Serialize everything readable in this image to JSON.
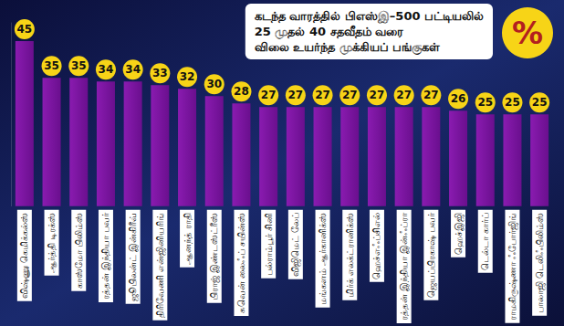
{
  "chart_data": {
    "type": "bar",
    "title": "கடந்த வாரத்தில் பிஎஸ்இ–500 பட்டியலில்\n25 முதல் 40 சதவீதம் வரை\nவிலை உயர்ந்த முக்கியப் பங்குகள்",
    "annotations": [
      {
        "text": "%"
      }
    ],
    "categories": [
      "விஷ்ணு கெமிக்கல்ஸ்",
      "ஆர்த்தி டிரக்ஸ்",
      "காஸ்மோ பிலிம்ஸ்",
      "ரத்தன் இந்தியா பவர்",
      "ஜூபிலன்ட் இன்கிரீவ்",
      "திரிவேணி என்ஜினியரிங்",
      "ஆனந்த் ராதி",
      "பிராஜ் இண்டஸ்ட்ரீஸ்",
      "சுவென் லைஃப் சயின்ஸ்",
      "பல்ராம்பூர் சினி",
      "விஜிமெட் லேப்",
      "மங்களம் ஆர்கானிக்ஸ்",
      "மிர்க் எலக்ட்ரானிக்ஸ்",
      "ஹெச்எஃப்சிஎல்",
      "ரத்தன் இந்தியா இன்ஃப்ரா",
      "ஜெயப்பிரகாஷ் பவர்",
      "ஹெச்இஜி",
      "டெல்டா கார்ப்",
      "ராமகிருஷ்ணா ஃபோர்ஜிங்",
      "பாலாஜி டெலிஃபிலிம்ஸ்"
    ],
    "values": [
      45,
      35,
      35,
      34,
      34,
      33,
      32,
      30,
      28,
      27,
      27,
      27,
      27,
      27,
      27,
      27,
      26,
      25,
      25,
      25
    ],
    "color": "#8a1bb0",
    "ylim": [
      0,
      50
    ],
    "grid": false,
    "data_labels": true,
    "tick_labels": "x"
  }
}
